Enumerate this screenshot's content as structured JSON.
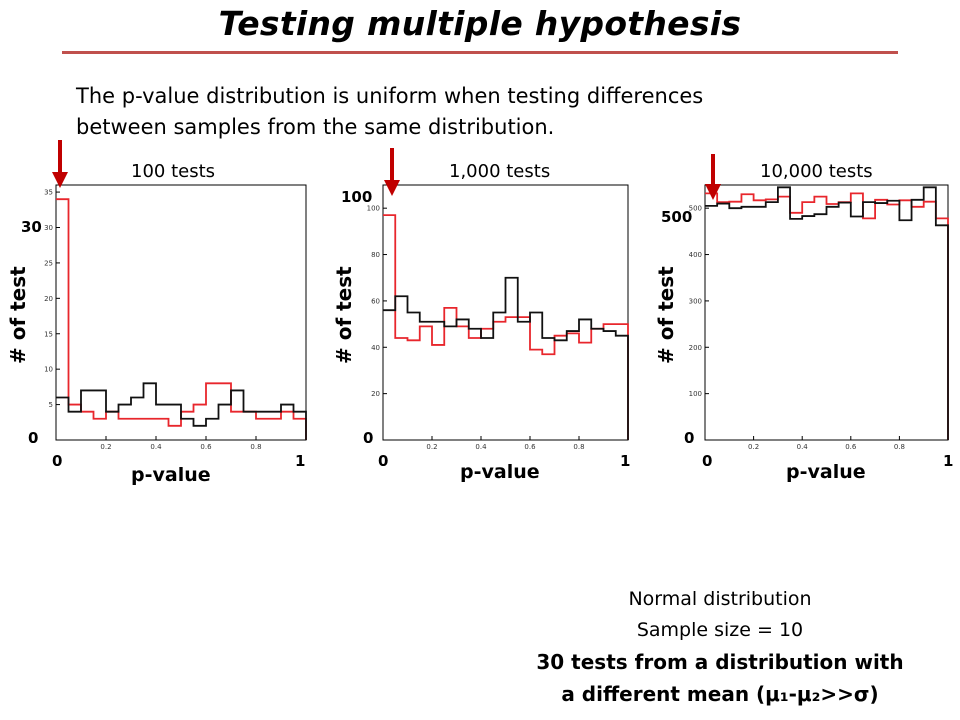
{
  "slide": {
    "title": "Testing multiple hypothesis",
    "intro_line1": "The p-value distribution is uniform when testing differences",
    "intro_line2": "between samples from the same distribution.",
    "note_line1": "Normal distribution",
    "note_line2": "Sample size = 10",
    "note_line3": "30 tests from a distribution with",
    "note_line4": "a different mean (μ₁-μ₂>>σ)",
    "colors": {
      "title_rule": "#c0504d",
      "arrow": "#c00000",
      "series_red": "#e8262c",
      "series_black": "#111111"
    }
  },
  "chart_data": [
    {
      "type": "histogram",
      "title": "100 tests",
      "xlabel": "p-value",
      "ylabel": "# of test",
      "xlim": [
        0,
        1
      ],
      "ylim": [
        0,
        36
      ],
      "x_tick_labels": [
        "0.2",
        "0.4",
        "0.6",
        "0.8"
      ],
      "y_tick_labels": [
        "5",
        "10",
        "15",
        "20",
        "25",
        "30",
        "35"
      ],
      "annot_x_min": "0",
      "annot_x_max": "1",
      "annot_y_high": "30",
      "annot_y_low": "0",
      "bin_width": 0.05,
      "series": [
        {
          "color": "#e8262c",
          "values": [
            34,
            5,
            4,
            3,
            4,
            3,
            3,
            3,
            3,
            2,
            4,
            5,
            8,
            8,
            4,
            4,
            3,
            3,
            4,
            3
          ]
        },
        {
          "color": "#111111",
          "values": [
            6,
            4,
            7,
            7,
            4,
            5,
            6,
            8,
            5,
            5,
            3,
            2,
            3,
            5,
            7,
            4,
            4,
            4,
            5,
            4
          ]
        }
      ]
    },
    {
      "type": "histogram",
      "title": "1,000 tests",
      "xlabel": "p-value",
      "ylabel": "# of test",
      "xlim": [
        0,
        1
      ],
      "ylim": [
        0,
        110
      ],
      "x_tick_labels": [
        "0.2",
        "0.4",
        "0.6",
        "0.8"
      ],
      "y_tick_labels": [
        "20",
        "40",
        "60",
        "80",
        "100"
      ],
      "annot_x_min": "0",
      "annot_x_max": "1",
      "annot_y_high": "100",
      "annot_y_low": "0",
      "bin_width": 0.05,
      "series": [
        {
          "color": "#e8262c",
          "values": [
            97,
            44,
            43,
            49,
            41,
            57,
            49,
            44,
            48,
            51,
            53,
            53,
            39,
            37,
            45,
            46,
            42,
            48,
            50,
            50
          ]
        },
        {
          "color": "#111111",
          "values": [
            56,
            62,
            55,
            51,
            51,
            49,
            52,
            48,
            44,
            55,
            70,
            51,
            55,
            44,
            43,
            47,
            52,
            48,
            47,
            45
          ]
        }
      ]
    },
    {
      "type": "histogram",
      "title": "10,000 tests",
      "xlabel": "p-value",
      "ylabel": "# of test",
      "xlim": [
        0,
        1
      ],
      "ylim": [
        0,
        550
      ],
      "x_tick_labels": [
        "0.2",
        "0.4",
        "0.6",
        "0.8"
      ],
      "y_tick_labels": [
        "100",
        "200",
        "300",
        "400",
        "500"
      ],
      "annot_x_min": "0",
      "annot_x_max": "1",
      "annot_y_high": "500",
      "annot_y_low": "0",
      "bin_width": 0.05,
      "series": [
        {
          "color": "#e8262c",
          "values": [
            532,
            513,
            514,
            530,
            517,
            519,
            525,
            490,
            513,
            525,
            509,
            513,
            532,
            478,
            518,
            508,
            517,
            503,
            514,
            478
          ]
        },
        {
          "color": "#111111",
          "values": [
            505,
            510,
            500,
            503,
            503,
            513,
            545,
            477,
            483,
            487,
            503,
            512,
            482,
            513,
            511,
            516,
            474,
            518,
            545,
            463
          ]
        }
      ]
    }
  ]
}
